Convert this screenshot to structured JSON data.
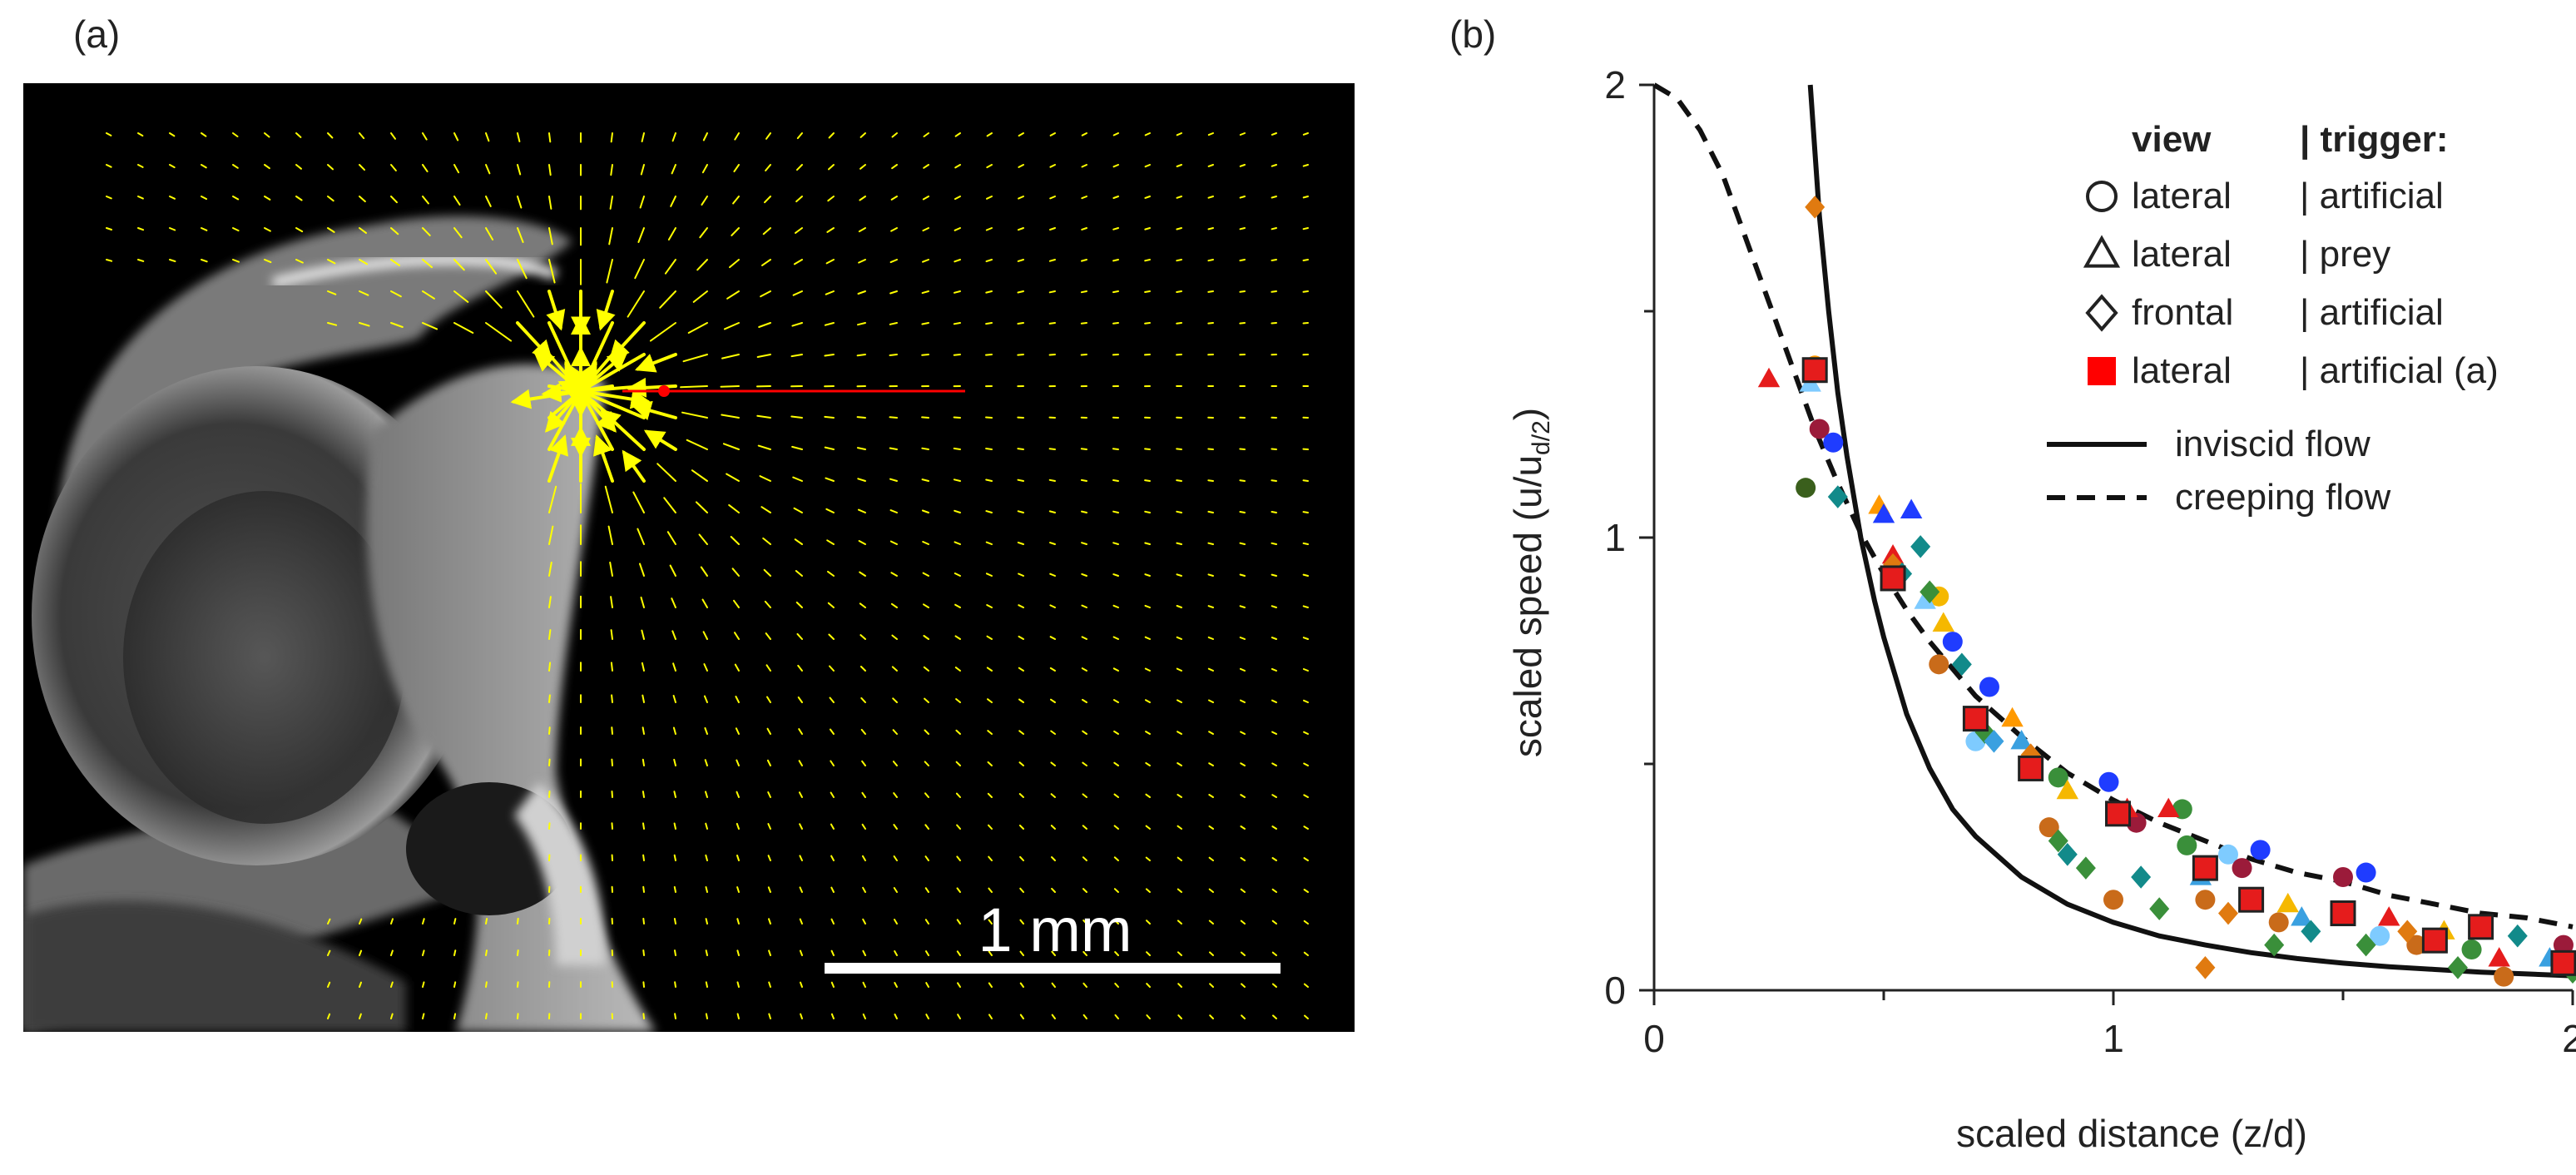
{
  "panel_a": {
    "label": "(a)",
    "scalebar_label": "1 mm",
    "colors": {
      "background": "#000000",
      "vectors": "#ffff00",
      "prey_arrow": "#ff0000",
      "scalebar": "#ffffff"
    }
  },
  "panel_b": {
    "label": "(b)"
  },
  "chart_data": {
    "type": "scatter",
    "xlabel": "scaled distance (z/d)",
    "ylabel_main": "scaled speed (u/u",
    "ylabel_sub": "d/2",
    "ylabel_end": ")",
    "xlim": [
      0,
      2
    ],
    "ylim": [
      0,
      2
    ],
    "xticks": [
      "0",
      "1",
      "2"
    ],
    "yticks": [
      "0",
      "1",
      "2"
    ],
    "legend": {
      "position": "top-right",
      "header_view": "view",
      "header_trigger": "| trigger:",
      "entries": [
        {
          "marker": "open-circle",
          "view": "lateral",
          "trigger": "| artificial"
        },
        {
          "marker": "open-triangle",
          "view": "lateral",
          "trigger": "| prey"
        },
        {
          "marker": "open-diamond",
          "view": "frontal",
          "trigger": "| artificial"
        },
        {
          "marker": "red-square",
          "view": "lateral",
          "trigger": "| artificial (a)"
        }
      ],
      "lines": [
        {
          "style": "solid",
          "label": "inviscid flow"
        },
        {
          "style": "dashed",
          "label": "creeping flow"
        }
      ]
    },
    "curves": [
      {
        "name": "inviscid flow",
        "style": "solid",
        "formula": "1/(8*(x+0.5)^3)/(1/8)*... ",
        "x": [
          0.34,
          0.36,
          0.38,
          0.4,
          0.42,
          0.45,
          0.48,
          0.5,
          0.55,
          0.6,
          0.65,
          0.7,
          0.8,
          0.9,
          1.0,
          1.1,
          1.2,
          1.3,
          1.4,
          1.5,
          1.6,
          1.7,
          1.8,
          1.9,
          2.0
        ],
        "y": [
          2.0,
          1.71,
          1.5,
          1.32,
          1.18,
          1.0,
          0.86,
          0.78,
          0.61,
          0.49,
          0.4,
          0.34,
          0.25,
          0.19,
          0.15,
          0.12,
          0.1,
          0.083,
          0.07,
          0.06,
          0.052,
          0.046,
          0.04,
          0.036,
          0.032
        ]
      },
      {
        "name": "creeping flow",
        "style": "dashed",
        "x": [
          0.0,
          0.05,
          0.1,
          0.15,
          0.2,
          0.25,
          0.3,
          0.35,
          0.4,
          0.45,
          0.5,
          0.55,
          0.6,
          0.7,
          0.8,
          0.9,
          1.0,
          1.1,
          1.2,
          1.3,
          1.4,
          1.5,
          1.6,
          1.7,
          1.8,
          1.9,
          2.0
        ],
        "y": [
          2.0,
          1.97,
          1.9,
          1.8,
          1.66,
          1.52,
          1.38,
          1.24,
          1.12,
          1.01,
          0.92,
          0.84,
          0.77,
          0.65,
          0.56,
          0.48,
          0.42,
          0.37,
          0.33,
          0.29,
          0.26,
          0.24,
          0.21,
          0.19,
          0.17,
          0.16,
          0.14
        ]
      }
    ],
    "series": [
      {
        "name": "lateral | artificial",
        "marker": "circle",
        "points": [
          {
            "x": 0.33,
            "y": 1.11,
            "c": "#3a5f1c"
          },
          {
            "x": 0.35,
            "y": 1.38,
            "c": "#ff9900"
          },
          {
            "x": 0.36,
            "y": 1.24,
            "c": "#9b1b3a"
          },
          {
            "x": 0.39,
            "y": 1.21,
            "c": "#1f3cff"
          },
          {
            "x": 0.62,
            "y": 0.87,
            "c": "#f5b800"
          },
          {
            "x": 0.62,
            "y": 0.72,
            "c": "#c96b1a"
          },
          {
            "x": 0.65,
            "y": 0.77,
            "c": "#1f3cff"
          },
          {
            "x": 0.7,
            "y": 0.55,
            "c": "#7ecbff"
          },
          {
            "x": 0.73,
            "y": 0.67,
            "c": "#1f3cff"
          },
          {
            "x": 0.86,
            "y": 0.36,
            "c": "#c96b1a"
          },
          {
            "x": 0.88,
            "y": 0.47,
            "c": "#3a8f3a"
          },
          {
            "x": 0.99,
            "y": 0.46,
            "c": "#1f3cff"
          },
          {
            "x": 1.0,
            "y": 0.2,
            "c": "#c96b1a"
          },
          {
            "x": 1.05,
            "y": 0.37,
            "c": "#9b1b3a"
          },
          {
            "x": 1.15,
            "y": 0.4,
            "c": "#3a8f3a"
          },
          {
            "x": 1.2,
            "y": 0.2,
            "c": "#c96b1a"
          },
          {
            "x": 1.25,
            "y": 0.3,
            "c": "#7ecbff"
          },
          {
            "x": 1.28,
            "y": 0.27,
            "c": "#9b1b3a"
          },
          {
            "x": 1.32,
            "y": 0.31,
            "c": "#1f3cff"
          },
          {
            "x": 1.36,
            "y": 0.15,
            "c": "#c96b1a"
          },
          {
            "x": 1.5,
            "y": 0.25,
            "c": "#9b1b3a"
          },
          {
            "x": 1.55,
            "y": 0.26,
            "c": "#1f3cff"
          },
          {
            "x": 1.58,
            "y": 0.12,
            "c": "#7ecbff"
          },
          {
            "x": 1.66,
            "y": 0.1,
            "c": "#c96b1a"
          },
          {
            "x": 1.78,
            "y": 0.09,
            "c": "#3a8f3a"
          },
          {
            "x": 1.85,
            "y": 0.03,
            "c": "#c96b1a"
          },
          {
            "x": 1.98,
            "y": 0.1,
            "c": "#9b1b3a"
          },
          {
            "x": 1.16,
            "y": 0.32,
            "c": "#3a8f3a"
          }
        ]
      },
      {
        "name": "lateral | prey",
        "marker": "triangle",
        "points": [
          {
            "x": 0.25,
            "y": 1.35,
            "c": "#e51c1c"
          },
          {
            "x": 0.34,
            "y": 1.34,
            "c": "#7ecbff"
          },
          {
            "x": 0.49,
            "y": 1.07,
            "c": "#ff9900"
          },
          {
            "x": 0.5,
            "y": 1.05,
            "c": "#1f3cff"
          },
          {
            "x": 0.52,
            "y": 0.96,
            "c": "#e51c1c"
          },
          {
            "x": 0.59,
            "y": 0.86,
            "c": "#7ecbff"
          },
          {
            "x": 0.63,
            "y": 0.81,
            "c": "#f5b800"
          },
          {
            "x": 0.78,
            "y": 0.6,
            "c": "#ff9900"
          },
          {
            "x": 0.8,
            "y": 0.55,
            "c": "#3aa0e0"
          },
          {
            "x": 0.9,
            "y": 0.44,
            "c": "#f5b800"
          },
          {
            "x": 1.03,
            "y": 0.4,
            "c": "#e51c1c"
          },
          {
            "x": 1.12,
            "y": 0.4,
            "c": "#e51c1c"
          },
          {
            "x": 1.19,
            "y": 0.25,
            "c": "#3aa0e0"
          },
          {
            "x": 1.38,
            "y": 0.19,
            "c": "#f5b800"
          },
          {
            "x": 1.41,
            "y": 0.16,
            "c": "#3aa0e0"
          },
          {
            "x": 1.6,
            "y": 0.16,
            "c": "#e51c1c"
          },
          {
            "x": 1.72,
            "y": 0.13,
            "c": "#f5b800"
          },
          {
            "x": 1.84,
            "y": 0.07,
            "c": "#e51c1c"
          },
          {
            "x": 1.95,
            "y": 0.07,
            "c": "#3aa0e0"
          },
          {
            "x": 0.56,
            "y": 1.06,
            "c": "#1f3cff"
          }
        ]
      },
      {
        "name": "frontal | artificial",
        "marker": "diamond",
        "points": [
          {
            "x": 0.35,
            "y": 1.73,
            "c": "#e07a10"
          },
          {
            "x": 0.4,
            "y": 1.09,
            "c": "#128a8a"
          },
          {
            "x": 0.52,
            "y": 0.94,
            "c": "#e07a10"
          },
          {
            "x": 0.54,
            "y": 0.92,
            "c": "#128a8a"
          },
          {
            "x": 0.58,
            "y": 0.98,
            "c": "#128a8a"
          },
          {
            "x": 0.6,
            "y": 0.88,
            "c": "#3a8f3a"
          },
          {
            "x": 0.67,
            "y": 0.72,
            "c": "#128a8a"
          },
          {
            "x": 0.72,
            "y": 0.57,
            "c": "#3a8f3a"
          },
          {
            "x": 0.74,
            "y": 0.55,
            "c": "#3aa0e0"
          },
          {
            "x": 0.82,
            "y": 0.52,
            "c": "#e07a10"
          },
          {
            "x": 0.88,
            "y": 0.33,
            "c": "#3a8f3a"
          },
          {
            "x": 0.9,
            "y": 0.3,
            "c": "#128a8a"
          },
          {
            "x": 0.94,
            "y": 0.27,
            "c": "#3a8f3a"
          },
          {
            "x": 1.06,
            "y": 0.25,
            "c": "#128a8a"
          },
          {
            "x": 1.1,
            "y": 0.18,
            "c": "#3a8f3a"
          },
          {
            "x": 1.25,
            "y": 0.17,
            "c": "#e07a10"
          },
          {
            "x": 1.35,
            "y": 0.1,
            "c": "#3a8f3a"
          },
          {
            "x": 1.43,
            "y": 0.13,
            "c": "#128a8a"
          },
          {
            "x": 1.55,
            "y": 0.1,
            "c": "#3a8f3a"
          },
          {
            "x": 1.64,
            "y": 0.13,
            "c": "#e07a10"
          },
          {
            "x": 1.75,
            "y": 0.05,
            "c": "#3a8f3a"
          },
          {
            "x": 1.88,
            "y": 0.12,
            "c": "#128a8a"
          },
          {
            "x": 1.2,
            "y": 0.05,
            "c": "#e07a10"
          },
          {
            "x": 2.0,
            "y": 0.04,
            "c": "#3a8f3a"
          }
        ]
      },
      {
        "name": "lateral | artificial (a)",
        "marker": "square",
        "points": [
          {
            "x": 0.35,
            "y": 1.37,
            "c": "#e51c1c"
          },
          {
            "x": 0.52,
            "y": 0.91,
            "c": "#e51c1c"
          },
          {
            "x": 0.7,
            "y": 0.6,
            "c": "#e51c1c"
          },
          {
            "x": 0.82,
            "y": 0.49,
            "c": "#e51c1c"
          },
          {
            "x": 1.01,
            "y": 0.39,
            "c": "#e51c1c"
          },
          {
            "x": 1.2,
            "y": 0.27,
            "c": "#e51c1c"
          },
          {
            "x": 1.3,
            "y": 0.2,
            "c": "#e51c1c"
          },
          {
            "x": 1.5,
            "y": 0.17,
            "c": "#e51c1c"
          },
          {
            "x": 1.7,
            "y": 0.11,
            "c": "#e51c1c"
          },
          {
            "x": 1.8,
            "y": 0.14,
            "c": "#e51c1c"
          },
          {
            "x": 1.98,
            "y": 0.06,
            "c": "#e51c1c"
          }
        ]
      }
    ]
  }
}
